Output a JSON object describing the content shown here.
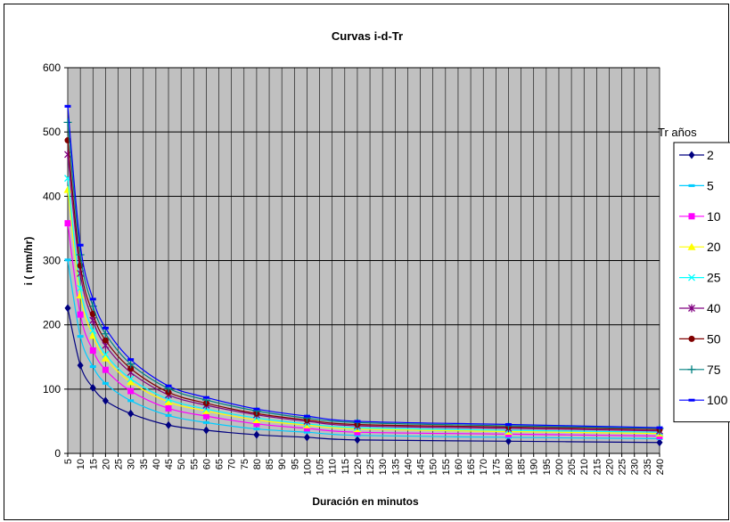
{
  "chart_data": {
    "type": "line",
    "title": "Curvas i-d-Tr",
    "xlabel": "Duración en minutos",
    "ylabel": "i  ( mm/hr)",
    "ylim": [
      0,
      600
    ],
    "yticks": [
      "0",
      "100",
      "200",
      "300",
      "400",
      "500",
      "600"
    ],
    "xticks": [
      "5",
      "10",
      "15",
      "20",
      "25",
      "30",
      "35",
      "40",
      "45",
      "50",
      "55",
      "60",
      "65",
      "70",
      "75",
      "80",
      "85",
      "90",
      "95",
      "100",
      "105",
      "110",
      "115",
      "120",
      "125",
      "130",
      "135",
      "140",
      "145",
      "150",
      "155",
      "160",
      "165",
      "170",
      "175",
      "180",
      "185",
      "190",
      "195",
      "200",
      "205",
      "210",
      "215",
      "220",
      "225",
      "230",
      "235",
      "240"
    ],
    "x": [
      5,
      10,
      15,
      20,
      30,
      45,
      60,
      80,
      100,
      120,
      180,
      240
    ],
    "legend_title": "Tr años",
    "legend_position": "right",
    "grid": true,
    "plot_background": "#c0c0c0",
    "series": [
      {
        "name": "2",
        "color": "#000080",
        "marker": "diamond",
        "values": [
          226,
          137,
          102,
          82,
          62,
          44,
          36,
          29,
          25,
          21,
          19,
          17
        ]
      },
      {
        "name": "5",
        "color": "#00ccff",
        "marker": "dash",
        "values": [
          301,
          182,
          135,
          109,
          82,
          59,
          48,
          38,
          33,
          28,
          25,
          23
        ]
      },
      {
        "name": "10",
        "color": "#ff00ff",
        "marker": "square",
        "values": [
          358,
          216,
          160,
          130,
          97,
          70,
          58,
          46,
          39,
          33,
          30,
          27
        ]
      },
      {
        "name": "20",
        "color": "#ffff00",
        "marker": "triangle",
        "values": [
          410,
          246,
          183,
          148,
          111,
          80,
          66,
          52,
          44,
          38,
          34,
          31
        ]
      },
      {
        "name": "25",
        "color": "#00ffff",
        "marker": "x",
        "values": [
          428,
          257,
          191,
          154,
          116,
          84,
          69,
          55,
          46,
          40,
          36,
          33
        ]
      },
      {
        "name": "40",
        "color": "#800080",
        "marker": "star",
        "values": [
          465,
          280,
          207,
          168,
          126,
          91,
          75,
          60,
          50,
          43,
          39,
          35
        ]
      },
      {
        "name": "50",
        "color": "#800000",
        "marker": "circle",
        "values": [
          487,
          292,
          217,
          176,
          132,
          95,
          78,
          62,
          52,
          45,
          41,
          37
        ]
      },
      {
        "name": "75",
        "color": "#008080",
        "marker": "plus",
        "values": [
          515,
          309,
          229,
          186,
          139,
          101,
          83,
          66,
          55,
          48,
          43,
          39
        ]
      },
      {
        "name": "100",
        "color": "#0000ff",
        "marker": "dash",
        "values": [
          540,
          324,
          240,
          195,
          146,
          105,
          87,
          69,
          58,
          50,
          45,
          40
        ]
      }
    ]
  }
}
